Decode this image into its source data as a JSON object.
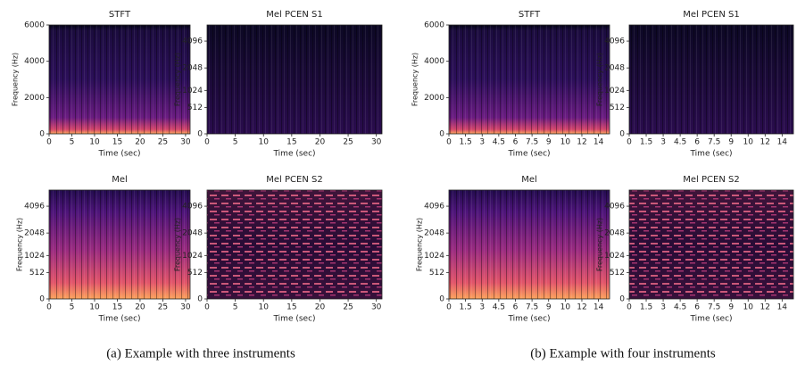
{
  "figure": {
    "subfigures": [
      {
        "caption": "(a) Example with three instruments",
        "panels": [
          {
            "title": "STFT",
            "xlabel": "Time (sec)",
            "ylabel": "Frequency (Hz)",
            "xlim": [
              0,
              31
            ],
            "xticks": [
              0,
              5,
              10,
              15,
              20,
              25,
              30
            ],
            "ylim": [
              0,
              6000
            ],
            "yticks": [
              0,
              2000,
              4000,
              6000
            ],
            "yscale": "linear",
            "colormap": "magma"
          },
          {
            "title": "Mel PCEN S1",
            "xlabel": "Time (sec)",
            "ylabel": "Frequency (Hz)",
            "xlim": [
              0,
              31
            ],
            "xticks": [
              0,
              5,
              10,
              15,
              20,
              25,
              30
            ],
            "ylim": [
              0,
              6000
            ],
            "yticks": [
              0,
              512,
              1024,
              2048,
              4096
            ],
            "yscale": "mel",
            "colormap": "magma"
          },
          {
            "title": "Mel",
            "xlabel": "Time (sec)",
            "ylabel": "Frequency (Hz)",
            "xlim": [
              0,
              31
            ],
            "xticks": [
              0,
              5,
              10,
              15,
              20,
              25,
              30
            ],
            "ylim": [
              0,
              6000
            ],
            "yticks": [
              0,
              512,
              1024,
              2048,
              4096
            ],
            "yscale": "mel",
            "colormap": "magma"
          },
          {
            "title": "Mel PCEN S2",
            "xlabel": "Time (sec)",
            "ylabel": "Frequency (Hz)",
            "xlim": [
              0,
              31
            ],
            "xticks": [
              0,
              5,
              10,
              15,
              20,
              25,
              30
            ],
            "ylim": [
              0,
              6000
            ],
            "yticks": [
              0,
              512,
              1024,
              2048,
              4096
            ],
            "yscale": "mel",
            "colormap": "magma"
          }
        ]
      },
      {
        "caption": "(b) Example with four instruments",
        "panels": [
          {
            "title": "STFT",
            "xlabel": "Time (sec)",
            "ylabel": "Frequency (Hz)",
            "xlim": [
              0,
              14.5
            ],
            "xticks": [
              0,
              1.5,
              3,
              4.5,
              6,
              7.5,
              9,
              {
                "value": 10.5,
                "label": "10"
              },
              12,
              {
                "value": 13.5,
                "label": "14"
              }
            ],
            "ylim": [
              0,
              6000
            ],
            "yticks": [
              0,
              2000,
              4000,
              6000
            ],
            "yscale": "linear",
            "colormap": "magma"
          },
          {
            "title": "Mel PCEN S1",
            "xlabel": "Time (sec)",
            "ylabel": "Frequency (Hz)",
            "xlim": [
              0,
              14.5
            ],
            "xticks": [
              0,
              1.5,
              3,
              4.5,
              6,
              7.5,
              9,
              {
                "value": 10.5,
                "label": "10"
              },
              12,
              {
                "value": 13.5,
                "label": "14"
              }
            ],
            "ylim": [
              0,
              6000
            ],
            "yticks": [
              0,
              512,
              1024,
              2048,
              4096
            ],
            "yscale": "mel",
            "colormap": "magma"
          },
          {
            "title": "Mel",
            "xlabel": "Time (sec)",
            "ylabel": "Frequency (Hz)",
            "xlim": [
              0,
              14.5
            ],
            "xticks": [
              0,
              1.5,
              3,
              4.5,
              6,
              7.5,
              9,
              {
                "value": 10.5,
                "label": "10"
              },
              12,
              {
                "value": 13.5,
                "label": "14"
              }
            ],
            "ylim": [
              0,
              6000
            ],
            "yticks": [
              0,
              512,
              1024,
              2048,
              4096
            ],
            "yscale": "mel",
            "colormap": "magma"
          },
          {
            "title": "Mel PCEN S2",
            "xlabel": "Time (sec)",
            "ylabel": "Frequency (Hz)",
            "xlim": [
              0,
              14.5
            ],
            "xticks": [
              0,
              1.5,
              3,
              4.5,
              6,
              7.5,
              9,
              {
                "value": 10.5,
                "label": "10"
              },
              12,
              {
                "value": 13.5,
                "label": "14"
              }
            ],
            "ylim": [
              0,
              6000
            ],
            "yticks": [
              0,
              512,
              1024,
              2048,
              4096
            ],
            "yscale": "mel",
            "colormap": "magma"
          }
        ]
      }
    ]
  }
}
